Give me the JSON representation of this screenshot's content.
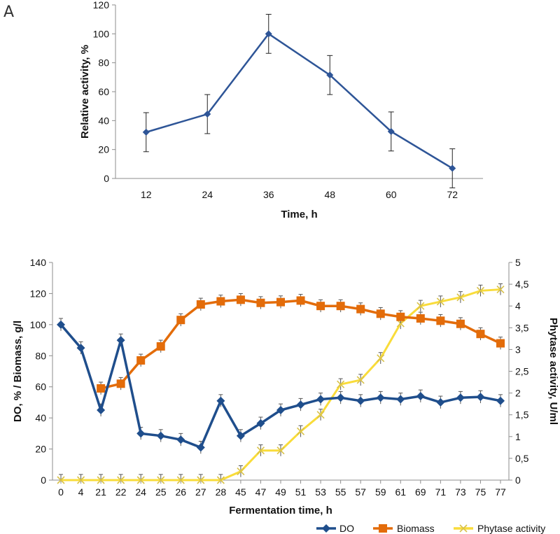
{
  "panel_label": "A",
  "chart_data": [
    {
      "type": "line",
      "categories": [
        "12",
        "24",
        "36",
        "48",
        "60",
        "72"
      ],
      "series": [
        {
          "values": [
            32,
            44.5,
            100,
            71.5,
            32.5,
            7
          ],
          "errors": [
            13.5,
            13.5,
            13.5,
            13.5,
            13.5,
            13.5
          ],
          "color": "#2e5597",
          "marker": "diamond"
        }
      ],
      "xlabel": "Time, h",
      "ylabel": "Relative activity, %",
      "ylim": [
        0,
        120
      ],
      "yticks": [
        0,
        20,
        40,
        60,
        80,
        100,
        120
      ],
      "grid": false
    },
    {
      "type": "line",
      "categories": [
        "0",
        "4",
        "21",
        "22",
        "24",
        "25",
        "26",
        "27",
        "28",
        "45",
        "47",
        "49",
        "51",
        "53",
        "55",
        "57",
        "59",
        "61",
        "69",
        "71",
        "73",
        "75",
        "77"
      ],
      "series": [
        {
          "name": "DO",
          "axis": "left",
          "color": "#1f4e8c",
          "marker": "diamond",
          "values": [
            100,
            85,
            45,
            90,
            30,
            28.5,
            26,
            21,
            51,
            28.5,
            36.5,
            45,
            48.5,
            52,
            53,
            51,
            53,
            52,
            54,
            50,
            53,
            53.5,
            51
          ]
        },
        {
          "name": "Biomass",
          "axis": "left",
          "color": "#e36c0a",
          "marker": "square",
          "values": [
            null,
            null,
            59,
            62,
            77,
            86,
            103,
            113,
            115,
            116,
            114,
            114.5,
            115.5,
            112,
            112,
            110,
            107,
            105,
            104,
            102.5,
            100.5,
            94,
            88
          ]
        },
        {
          "name": "Phytase activity",
          "axis": "right",
          "color": "#f9dc3a",
          "marker": "x",
          "values": [
            0,
            0,
            0,
            0,
            0,
            0,
            0,
            0,
            0,
            0.2,
            0.68,
            0.68,
            1.12,
            1.5,
            2.2,
            2.3,
            2.8,
            3.6,
            4,
            4.1,
            4.2,
            4.35,
            4.38
          ]
        }
      ],
      "xlabel": "Fermentation time, h",
      "ylabel": "DO, % / Biomass, g/l",
      "y2label": "Phytase activity, U/ml",
      "ylim": [
        0,
        140
      ],
      "yticks": [
        "0",
        "20",
        "40",
        "60",
        "80",
        "100",
        "120",
        "140"
      ],
      "y2lim": [
        0,
        5
      ],
      "y2ticks": [
        "0",
        "0,5",
        "1",
        "1,5",
        "2",
        "2,5",
        "3",
        "3,5",
        "4",
        "4,5",
        "5"
      ],
      "legend": "bottom-right",
      "grid": false
    }
  ]
}
